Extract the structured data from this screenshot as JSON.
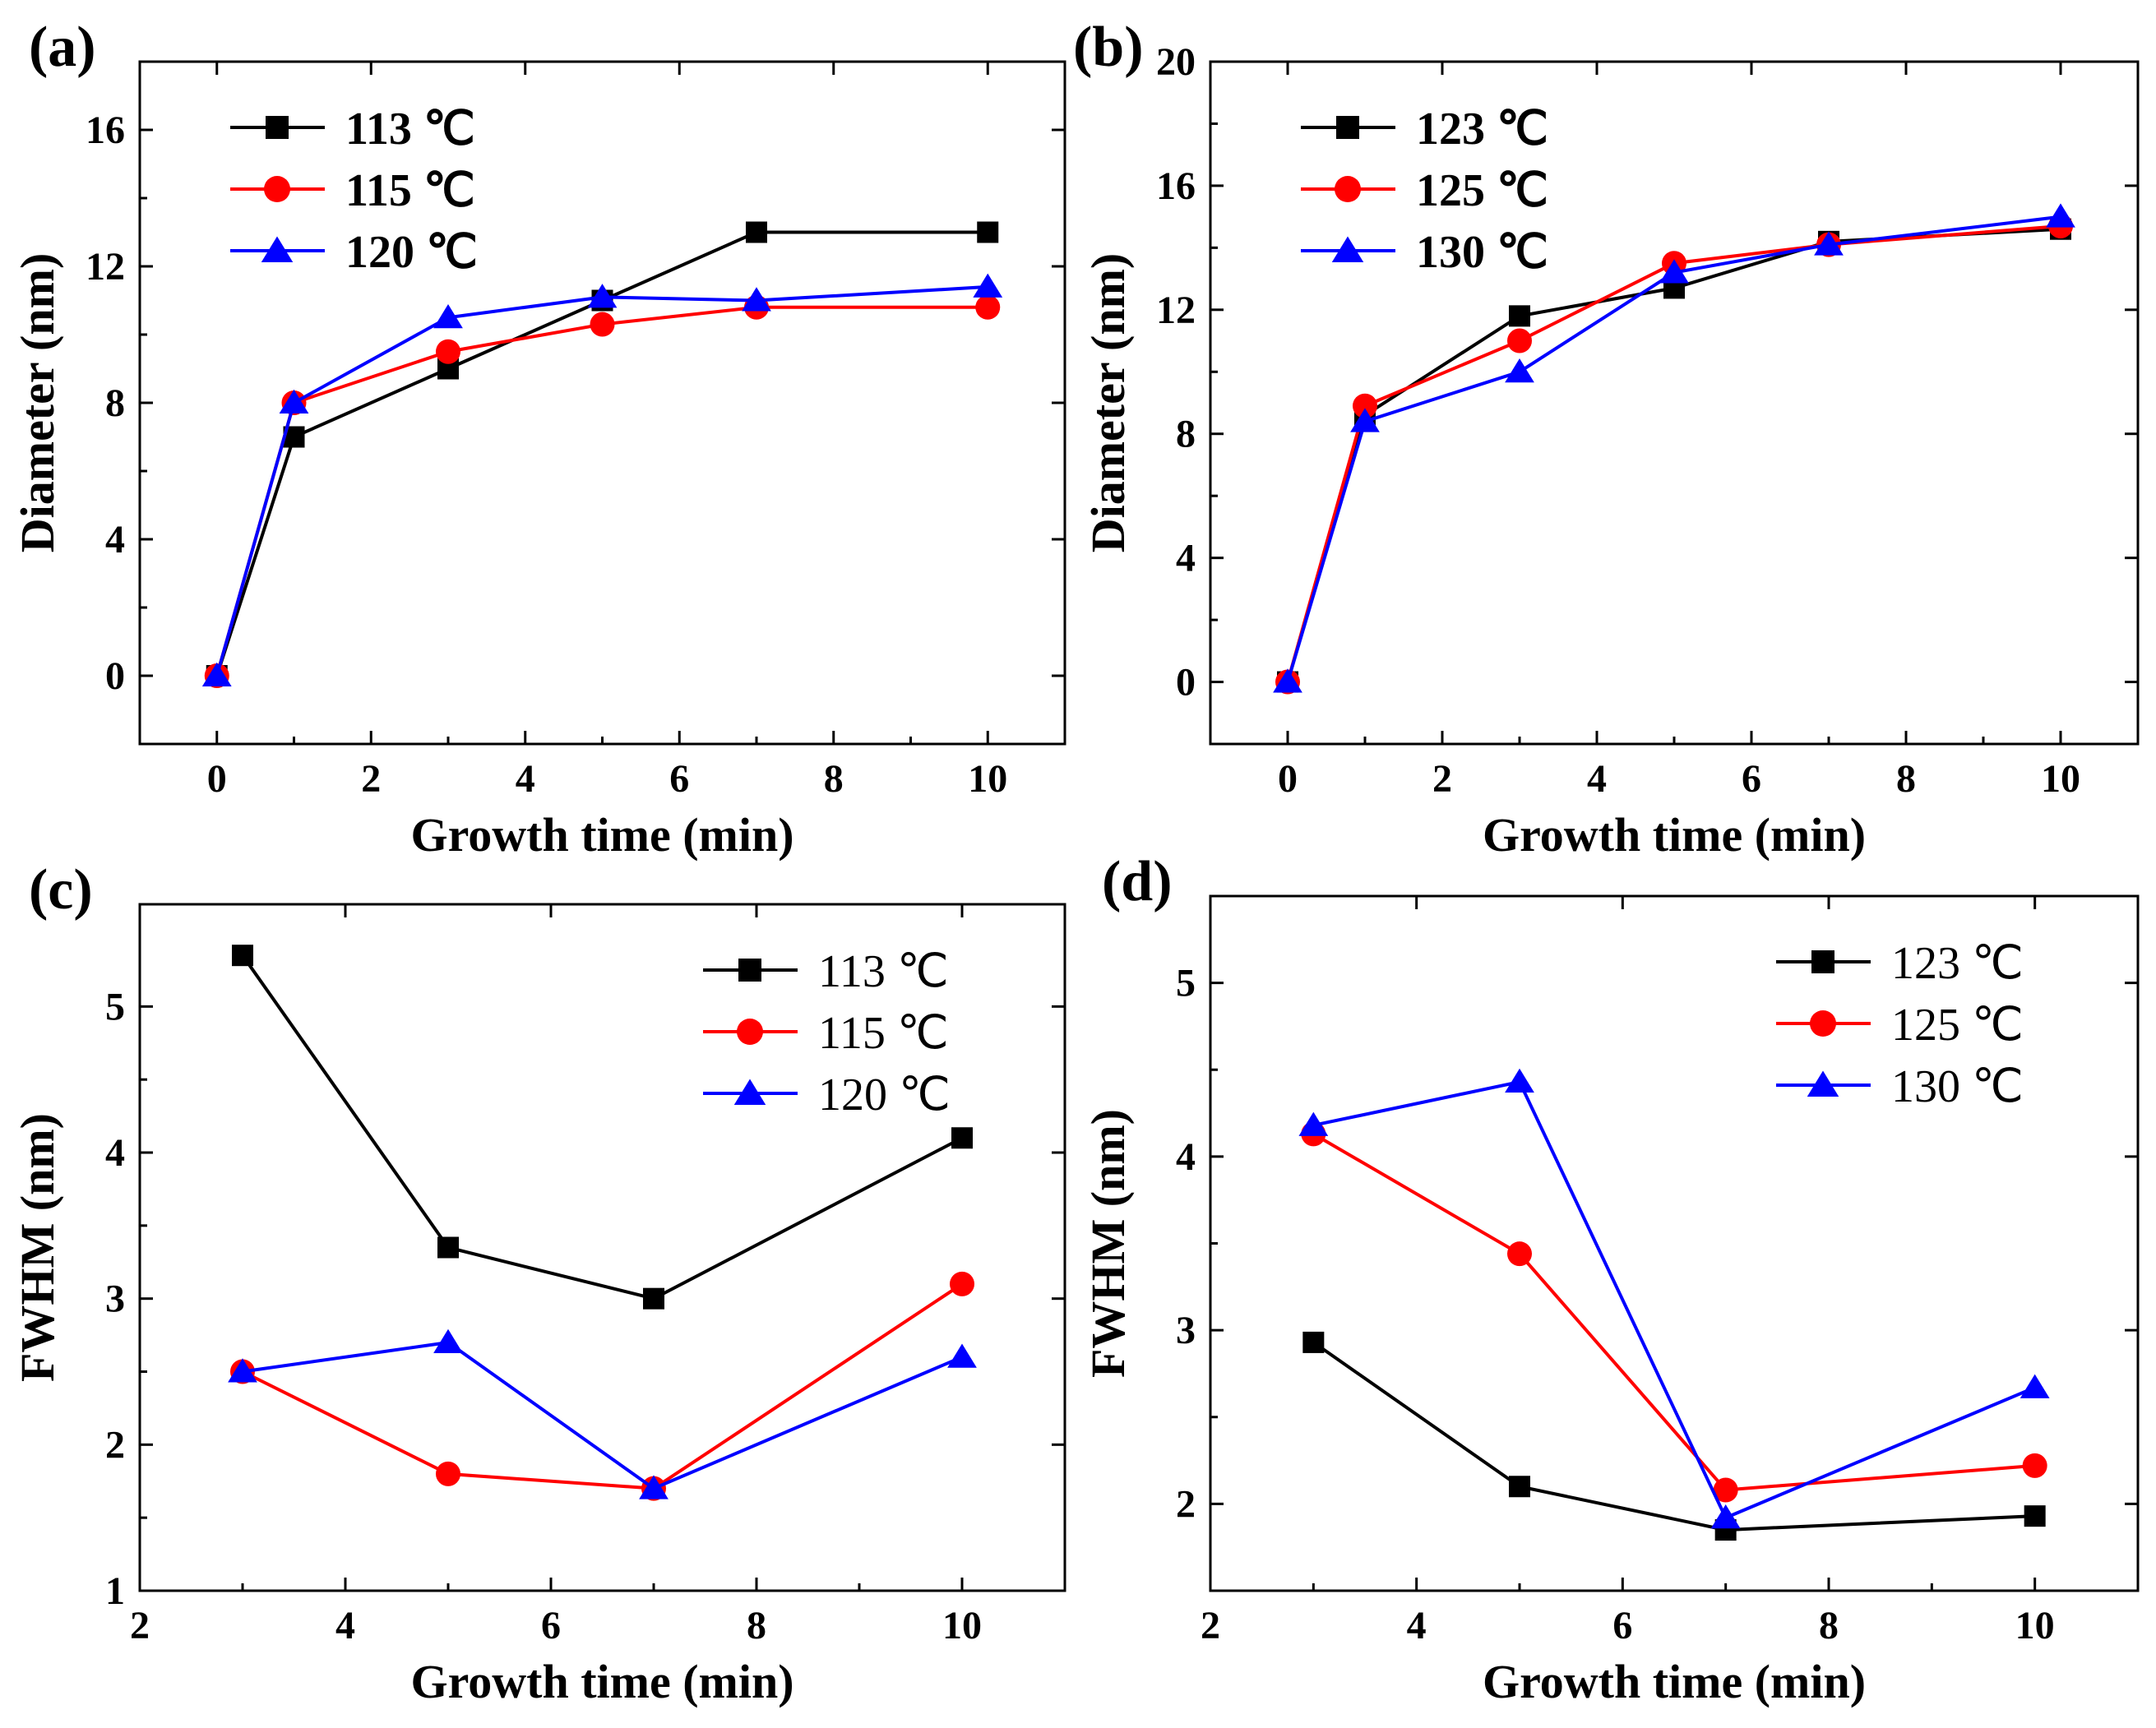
{
  "chart_data": [
    {
      "panel": "(a)",
      "type": "line",
      "xlabel": "Growth time (min)",
      "ylabel": "Diameter (nm)",
      "xlim": [
        -1,
        11
      ],
      "ylim": [
        -2,
        18
      ],
      "xticks": [
        0,
        2,
        4,
        6,
        8,
        10
      ],
      "yticks": [
        0,
        4,
        8,
        12,
        16
      ],
      "legend_position": "top-left",
      "legend_bold": true,
      "series": [
        {
          "name": "113 ℃",
          "color": "#000000",
          "marker": "square",
          "x": [
            0,
            1,
            3,
            5,
            7,
            10
          ],
          "y": [
            0,
            7.0,
            9.0,
            11.0,
            13.0,
            13.0
          ]
        },
        {
          "name": "115 ℃",
          "color": "#ff0000",
          "marker": "circle",
          "x": [
            0,
            1,
            3,
            5,
            7,
            10
          ],
          "y": [
            0,
            8.0,
            9.5,
            10.3,
            10.8,
            10.8
          ]
        },
        {
          "name": "120 ℃",
          "color": "#0000ff",
          "marker": "triangle",
          "x": [
            0,
            1,
            3,
            5,
            7,
            10
          ],
          "y": [
            0,
            8.0,
            10.5,
            11.1,
            11.0,
            11.4
          ]
        }
      ]
    },
    {
      "panel": "(b)",
      "type": "line",
      "xlabel": "Growth time (min)",
      "ylabel": "Diameter (nm)",
      "xlim": [
        -1,
        11
      ],
      "ylim": [
        -2,
        20
      ],
      "xticks": [
        0,
        2,
        4,
        6,
        8,
        10
      ],
      "yticks": [
        0,
        4,
        8,
        12,
        16,
        20
      ],
      "legend_position": "top-left",
      "legend_bold": true,
      "series": [
        {
          "name": "123 ℃",
          "color": "#000000",
          "marker": "square",
          "x": [
            0,
            1,
            3,
            5,
            7,
            10
          ],
          "y": [
            0,
            8.6,
            11.8,
            12.7,
            14.2,
            14.6
          ]
        },
        {
          "name": "125 ℃",
          "color": "#ff0000",
          "marker": "circle",
          "x": [
            0,
            1,
            3,
            5,
            7,
            10
          ],
          "y": [
            0,
            8.9,
            11.0,
            13.5,
            14.1,
            14.7
          ]
        },
        {
          "name": "130 ℃",
          "color": "#0000ff",
          "marker": "triangle",
          "x": [
            0,
            1,
            3,
            5,
            7,
            10
          ],
          "y": [
            0,
            8.4,
            10.0,
            13.2,
            14.1,
            15.0
          ]
        }
      ]
    },
    {
      "panel": "(c)",
      "type": "line",
      "xlabel": "Growth time (min)",
      "ylabel": "FWHM (nm)",
      "xlim": [
        2,
        11
      ],
      "ylim": [
        1,
        5.7
      ],
      "xticks": [
        2,
        4,
        6,
        8,
        10
      ],
      "yticks": [
        1,
        2,
        3,
        4,
        5
      ],
      "legend_position": "top-right",
      "legend_bold": false,
      "series": [
        {
          "name": "113 ℃",
          "color": "#000000",
          "marker": "square",
          "x": [
            3,
            5,
            7,
            10
          ],
          "y": [
            5.35,
            3.35,
            3.0,
            4.1
          ]
        },
        {
          "name": "115 ℃",
          "color": "#ff0000",
          "marker": "circle",
          "x": [
            3,
            5,
            7,
            10
          ],
          "y": [
            2.5,
            1.8,
            1.7,
            3.1
          ]
        },
        {
          "name": "120 ℃",
          "color": "#0000ff",
          "marker": "triangle",
          "x": [
            3,
            5,
            7,
            10
          ],
          "y": [
            2.5,
            2.7,
            1.7,
            2.6
          ]
        }
      ]
    },
    {
      "panel": "(d)",
      "type": "line",
      "xlabel": "Growth time (min)",
      "ylabel": "FWHM (nm)",
      "xlim": [
        2,
        11
      ],
      "ylim": [
        1.5,
        5.5
      ],
      "xticks": [
        2,
        4,
        6,
        8,
        10
      ],
      "yticks": [
        2,
        3,
        4,
        5
      ],
      "legend_position": "top-right",
      "legend_bold": false,
      "series": [
        {
          "name": "123 ℃",
          "color": "#000000",
          "marker": "square",
          "x": [
            3,
            5,
            7,
            10
          ],
          "y": [
            2.93,
            2.1,
            1.85,
            1.93
          ]
        },
        {
          "name": "125 ℃",
          "color": "#ff0000",
          "marker": "circle",
          "x": [
            3,
            5,
            7,
            10
          ],
          "y": [
            4.13,
            3.44,
            2.08,
            2.22
          ]
        },
        {
          "name": "130 ℃",
          "color": "#0000ff",
          "marker": "triangle",
          "x": [
            3,
            5,
            7,
            10
          ],
          "y": [
            4.18,
            4.43,
            1.92,
            2.67
          ]
        }
      ]
    }
  ]
}
